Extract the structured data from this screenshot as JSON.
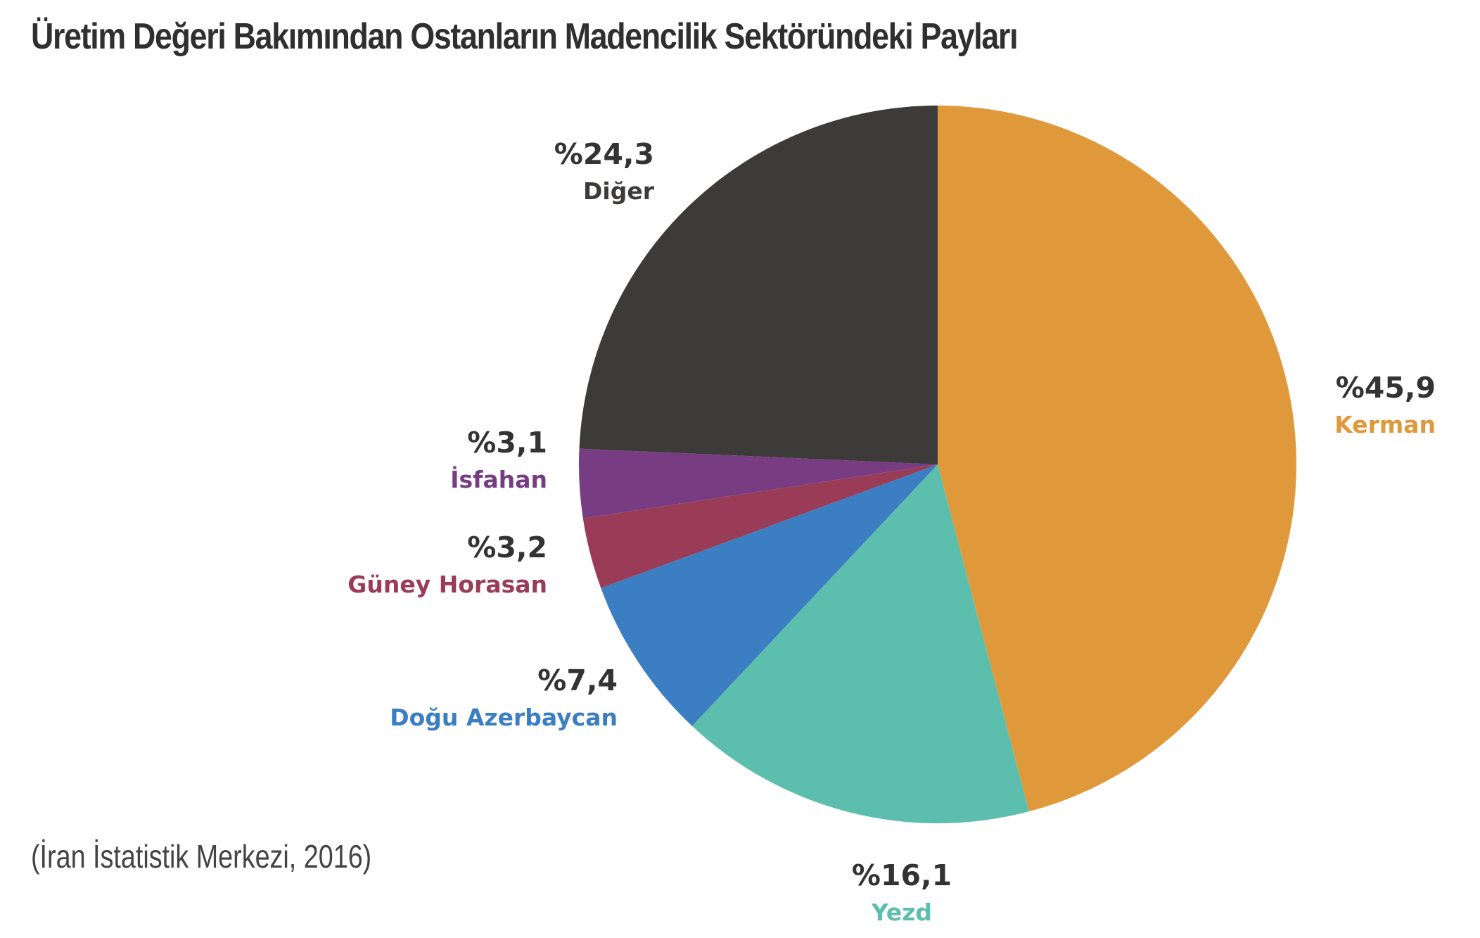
{
  "chart_data": {
    "type": "pie",
    "title": "Üretim Değeri Bakımından Ostanların Madencilik Sektöründeki Payları",
    "source": "(İran İstatistik Merkezi, 2016)",
    "slices": [
      {
        "name": "Kerman",
        "value": 45.9,
        "label": "%45,9",
        "color": "#E0993A"
      },
      {
        "name": "Yezd",
        "value": 16.1,
        "label": "%16,1",
        "color": "#5CBFAD"
      },
      {
        "name": "Doğu Azerbaycan",
        "value": 7.4,
        "label": "%7,4",
        "color": "#3B7FC2"
      },
      {
        "name": "Güney Horasan",
        "value": 3.2,
        "label": "%3,2",
        "color": "#9A3C58"
      },
      {
        "name": "İsfahan",
        "value": 3.1,
        "label": "%3,1",
        "color": "#773C82"
      },
      {
        "name": "Diğer",
        "value": 24.3,
        "label": "%24,3",
        "color": "#3C3B3A"
      }
    ]
  }
}
